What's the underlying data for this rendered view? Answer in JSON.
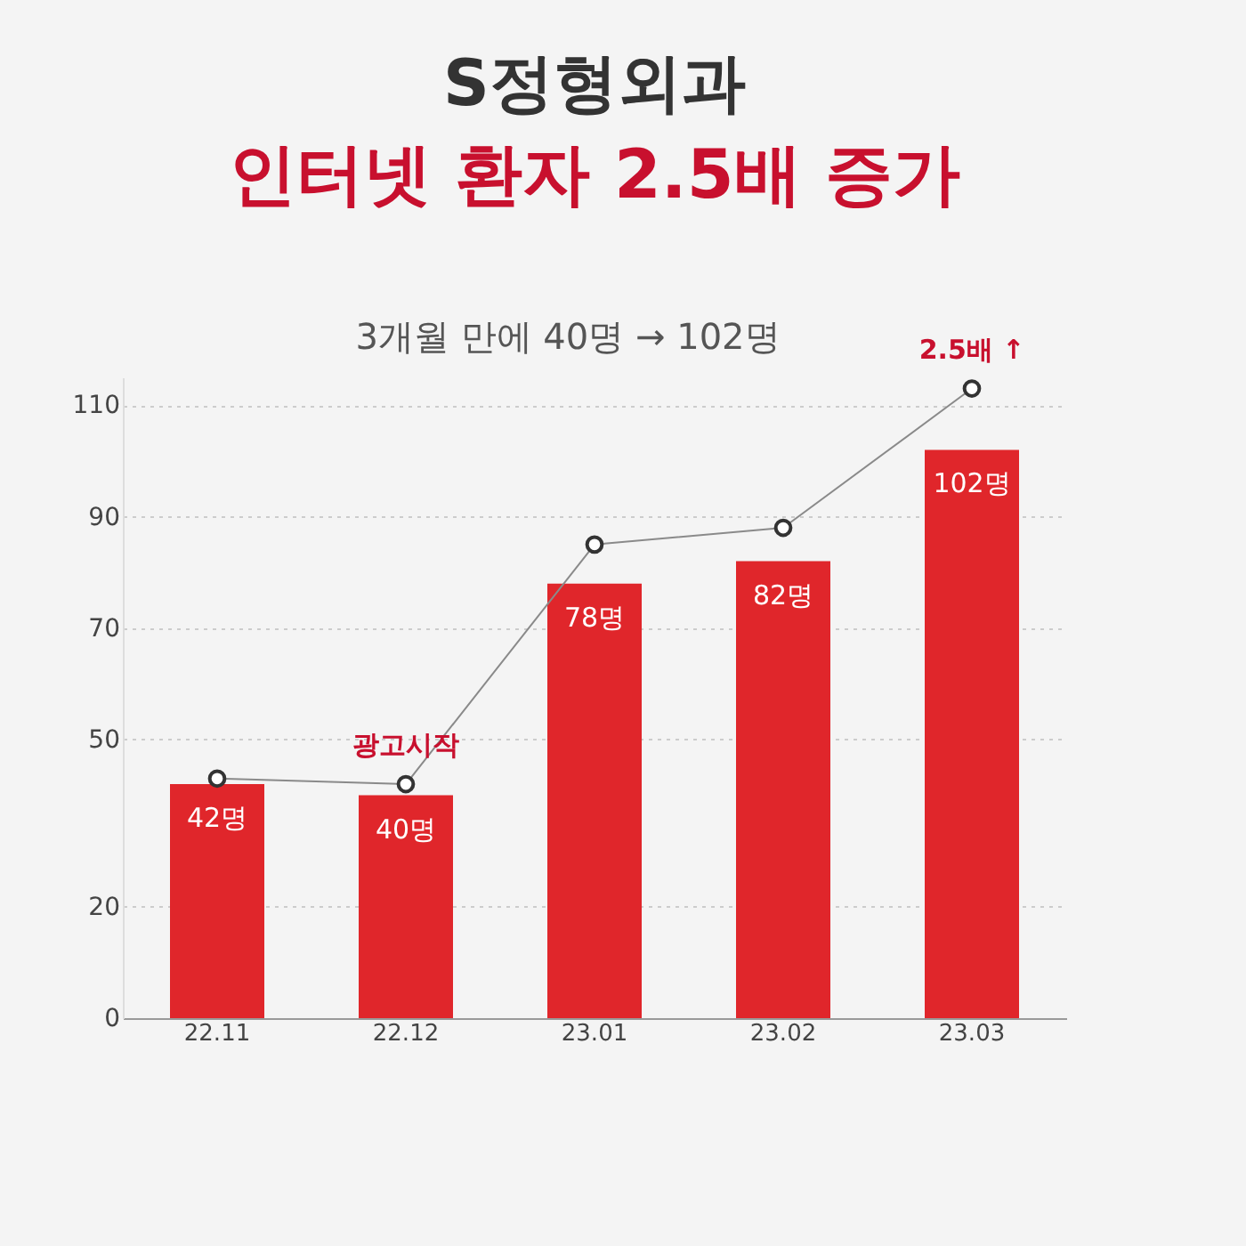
{
  "chart_data": {
    "type": "bar",
    "title": "S정형외과",
    "subtitle": "인터넷 환자 2.5배 증가",
    "categories": [
      "22.11",
      "22.12",
      "23.01",
      "23.02",
      "23.03"
    ],
    "series": [
      {
        "color": "#e0262b",
        "values": [
          42,
          40,
          78,
          82,
          102
        ],
        "value_labels": [
          "42명",
          "40명",
          "78명",
          "82명",
          "102명"
        ]
      },
      {
        "type": "line",
        "color": "#8a8a8a",
        "values": [
          43,
          42,
          85,
          88,
          113
        ]
      }
    ],
    "ylim": [
      0,
      115
    ],
    "yticks": [
      0,
      20,
      50,
      70,
      90,
      110
    ],
    "grid": "y",
    "marker": "circle",
    "annotations": [
      "3개월 만에 40명 → 102명",
      {
        "text": "광고시작",
        "x": "22.12",
        "y": 42
      },
      {
        "text": "2.5배 ↑",
        "x": "23.03",
        "y": 113
      }
    ]
  }
}
